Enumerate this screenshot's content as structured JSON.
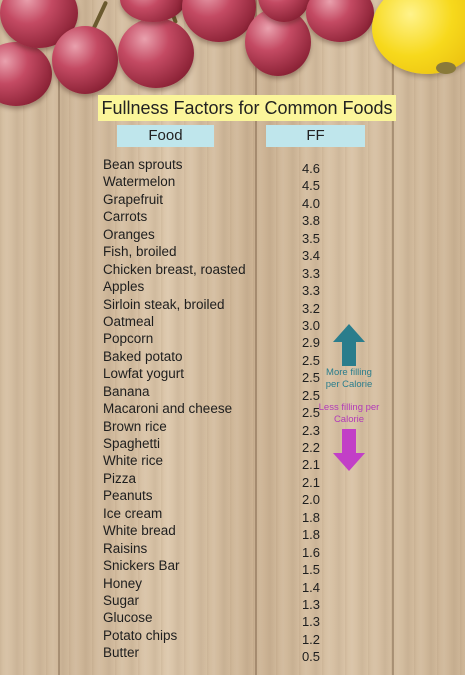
{
  "title": "Fullness Factors for Common Foods",
  "headers": {
    "food": "Food",
    "ff": "FF"
  },
  "rows": [
    {
      "food": "Bean sprouts",
      "ff": "4.6"
    },
    {
      "food": "Watermelon",
      "ff": "4.5"
    },
    {
      "food": "Grapefruit",
      "ff": "4.0"
    },
    {
      "food": "Carrots",
      "ff": "3.8"
    },
    {
      "food": "Oranges",
      "ff": "3.5"
    },
    {
      "food": "Fish, broiled",
      "ff": "3.4"
    },
    {
      "food": "Chicken breast, roasted",
      "ff": "3.3"
    },
    {
      "food": "Apples",
      "ff": "3.3"
    },
    {
      "food": "Sirloin steak, broiled",
      "ff": "3.2"
    },
    {
      "food": "Oatmeal",
      "ff": "3.0"
    },
    {
      "food": "Popcorn",
      "ff": "2.9"
    },
    {
      "food": "Baked potato",
      "ff": "2.5"
    },
    {
      "food": "Lowfat yogurt",
      "ff": "2.5"
    },
    {
      "food": "Banana",
      "ff": "2.5"
    },
    {
      "food": "Macaroni and cheese",
      "ff": "2.5"
    },
    {
      "food": "Brown rice",
      "ff": "2.3"
    },
    {
      "food": "Spaghetti",
      "ff": "2.2"
    },
    {
      "food": "White rice",
      "ff": "2.1"
    },
    {
      "food": "Pizza",
      "ff": "2.1"
    },
    {
      "food": "Peanuts",
      "ff": "2.0"
    },
    {
      "food": "Ice cream",
      "ff": "1.8"
    },
    {
      "food": "White bread",
      "ff": "1.8"
    },
    {
      "food": "Raisins",
      "ff": "1.6"
    },
    {
      "food": "Snickers Bar",
      "ff": "1.5"
    },
    {
      "food": "Honey",
      "ff": "1.4"
    },
    {
      "food": "Sugar",
      "ff": "1.3"
    },
    {
      "food": "Glucose",
      "ff": "1.3"
    },
    {
      "food": "Potato chips",
      "ff": "1.2"
    },
    {
      "food": "Butter",
      "ff": "0.5"
    }
  ],
  "legend": {
    "more": "More filling per Calorie",
    "less": "Less filling per Calorie"
  },
  "colors": {
    "title_bg": "#fbf59a",
    "header_bg": "#bfe6ec",
    "arrow_up": "#2a7d8c",
    "arrow_down": "#c23fc7",
    "more_text": "#2a7d8c",
    "less_text": "#b23ab8"
  },
  "icons": {
    "up": "arrow-up-icon",
    "down": "arrow-down-icon"
  }
}
